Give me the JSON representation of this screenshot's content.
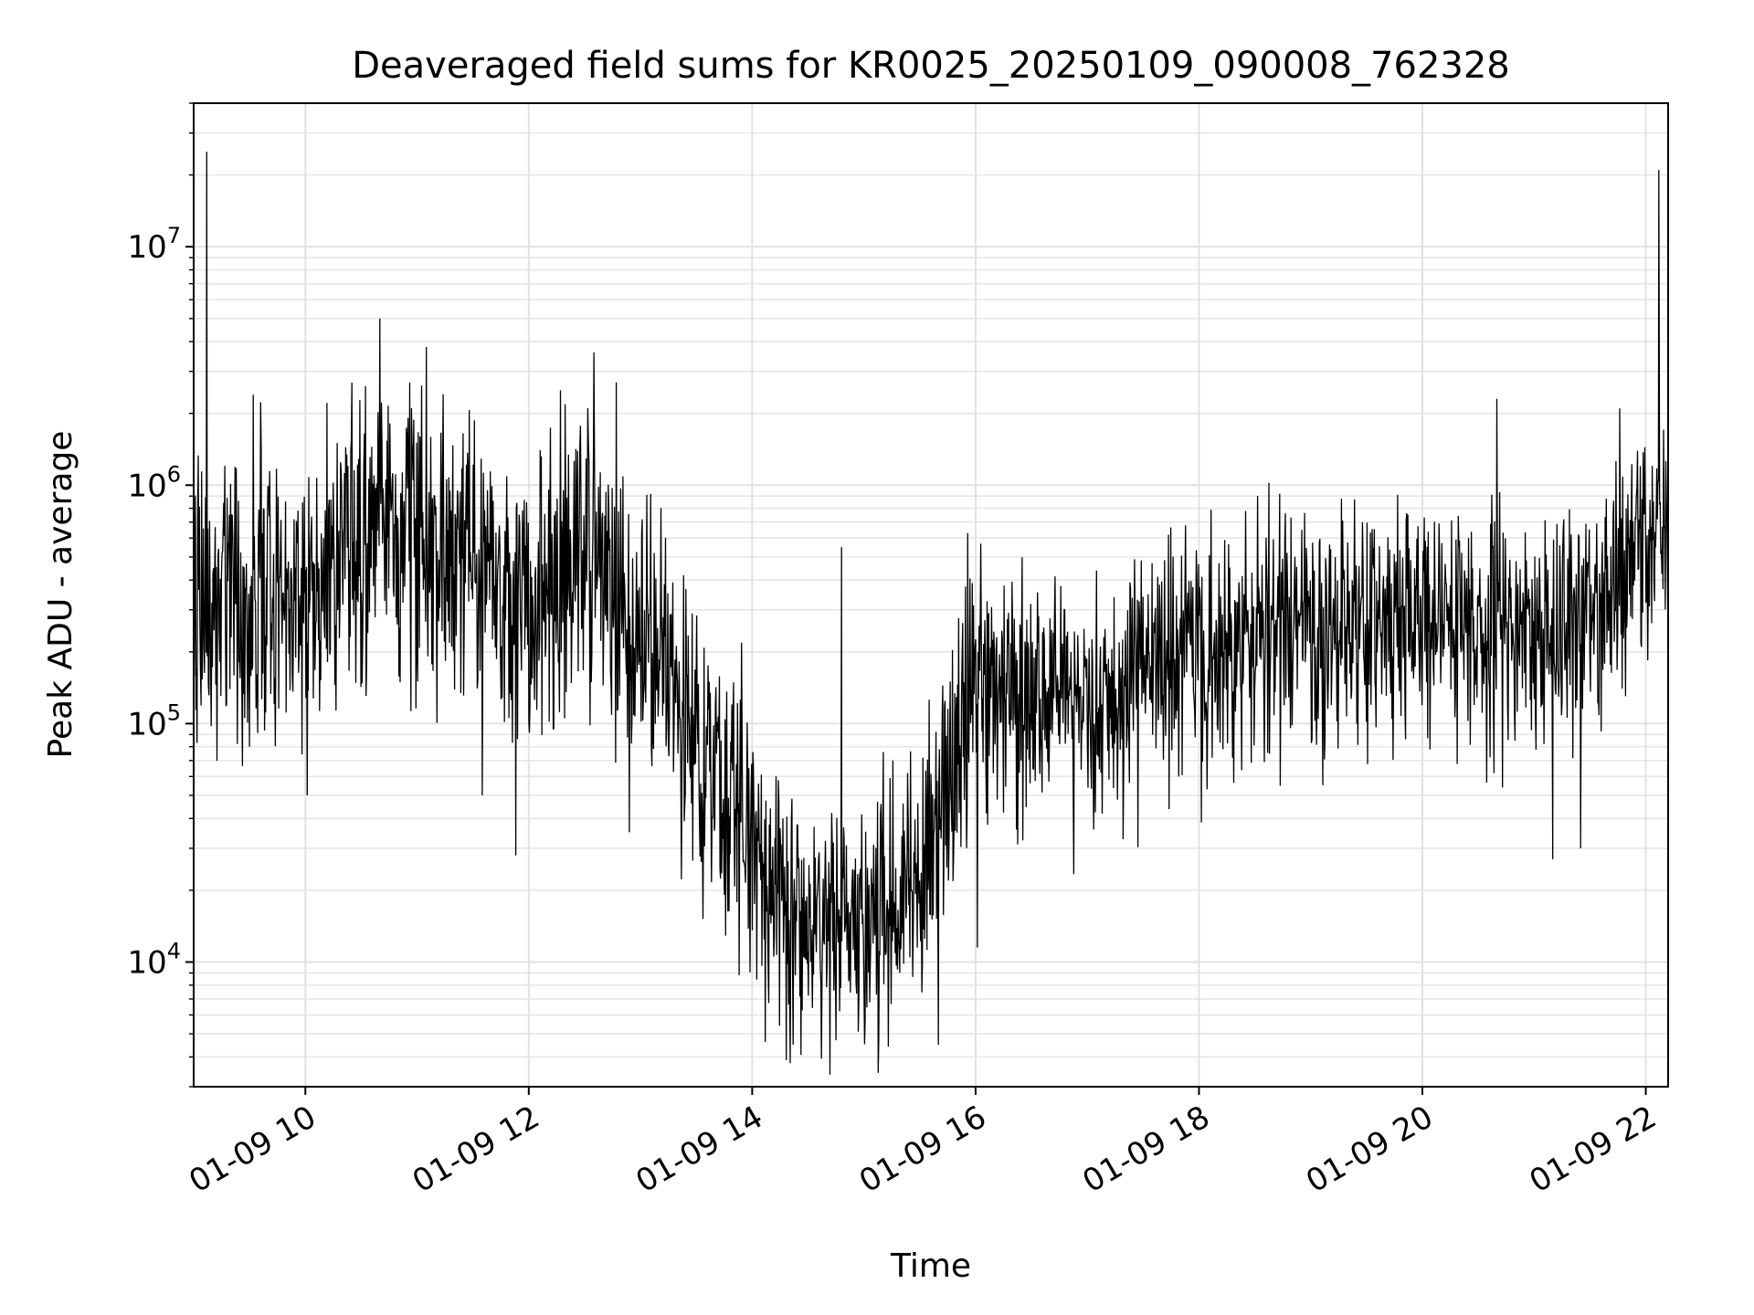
{
  "chart_data": {
    "type": "line",
    "title": "Deaveraged field sums for KR0025_20250109_090008_762328",
    "xlabel": "Time",
    "ylabel": "Peak ADU - average",
    "x_range": [
      "01-09 09:00",
      "01-09 22:12"
    ],
    "x_ticks": [
      {
        "hour": 10,
        "label": "01-09 10"
      },
      {
        "hour": 12,
        "label": "01-09 12"
      },
      {
        "hour": 14,
        "label": "01-09 14"
      },
      {
        "hour": 16,
        "label": "01-09 16"
      },
      {
        "hour": 18,
        "label": "01-09 18"
      },
      {
        "hour": 20,
        "label": "01-09 20"
      },
      {
        "hour": 22,
        "label": "01-09 22"
      }
    ],
    "y_scale": "log",
    "ylim": [
      3000,
      40000000
    ],
    "y_ticks": [
      {
        "value": 10000,
        "base": "10",
        "exp": "4"
      },
      {
        "value": 100000,
        "base": "10",
        "exp": "5"
      },
      {
        "value": 1000000,
        "base": "10",
        "exp": "6"
      },
      {
        "value": 10000000,
        "base": "10",
        "exp": "7"
      }
    ],
    "grid": true,
    "series": [
      {
        "color": "#000000",
        "trend": [
          [
            "01-09 09:00",
            300000
          ],
          [
            "01-09 09:30",
            350000
          ],
          [
            "01-09 10:00",
            320000
          ],
          [
            "01-09 10:30",
            700000
          ],
          [
            "01-09 11:00",
            550000
          ],
          [
            "01-09 11:30",
            450000
          ],
          [
            "01-09 12:00",
            300000
          ],
          [
            "01-09 12:30",
            500000
          ],
          [
            "01-09 13:00",
            250000
          ],
          [
            "01-09 13:30",
            80000
          ],
          [
            "01-09 14:00",
            40000
          ],
          [
            "01-09 14:20",
            14000
          ],
          [
            "01-09 15:00",
            14000
          ],
          [
            "01-09 15:30",
            20000
          ],
          [
            "01-09 15:45",
            60000
          ],
          [
            "01-09 16:00",
            150000
          ],
          [
            "01-09 17:00",
            120000
          ],
          [
            "01-09 18:00",
            180000
          ],
          [
            "01-09 19:00",
            250000
          ],
          [
            "01-09 20:00",
            270000
          ],
          [
            "01-09 21:00",
            250000
          ],
          [
            "01-09 21:40",
            300000
          ],
          [
            "01-09 21:50",
            500000
          ],
          [
            "01-09 22:12",
            550000
          ]
        ],
        "spikes": [
          [
            "01-09 09:07",
            25000000
          ],
          [
            "01-09 09:30",
            3400000
          ],
          [
            "01-09 10:40",
            5000000
          ],
          [
            "01-09 11:05",
            3800000
          ],
          [
            "01-09 12:17",
            2500000
          ],
          [
            "01-09 12:35",
            3600000
          ],
          [
            "01-09 12:47",
            2700000
          ],
          [
            "01-09 14:48",
            550000
          ],
          [
            "01-09 20:40",
            2300000
          ],
          [
            "01-09 21:46",
            2100000
          ],
          [
            "01-09 22:07",
            21000000
          ]
        ],
        "dips": [
          [
            "01-09 09:30",
            80000
          ],
          [
            "01-09 10:01",
            50000
          ],
          [
            "01-09 11:35",
            50000
          ],
          [
            "01-09 11:53",
            28000
          ],
          [
            "01-09 12:54",
            35000
          ],
          [
            "01-09 13:53",
            8800
          ],
          [
            "01-09 14:22",
            4500
          ],
          [
            "01-09 14:45",
            4700
          ],
          [
            "01-09 14:57",
            5100
          ],
          [
            "01-09 15:40",
            4500
          ],
          [
            "01-09 16:01",
            11500
          ],
          [
            "01-09 21:10",
            27000
          ],
          [
            "01-09 21:25",
            30000
          ]
        ]
      }
    ]
  }
}
